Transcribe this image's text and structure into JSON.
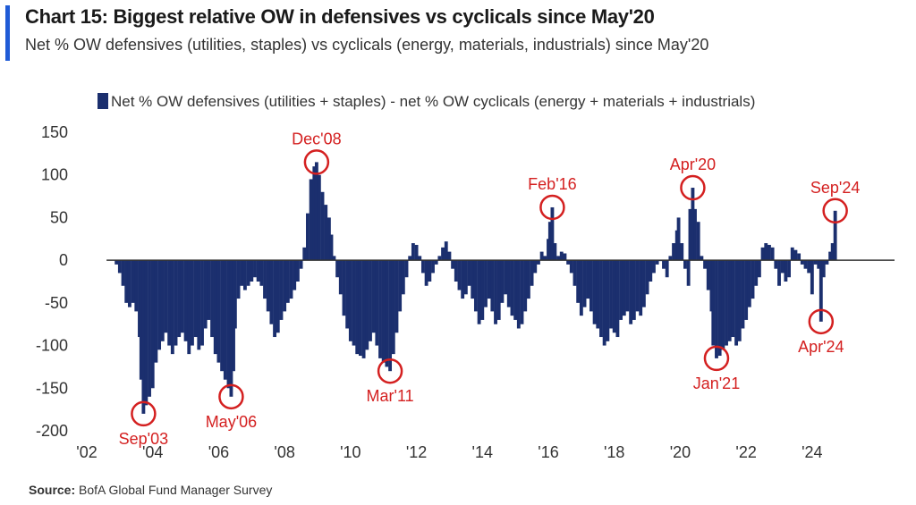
{
  "header": {
    "title": "Chart 15: Biggest relative OW in defensives vs cyclicals since May'20",
    "subtitle": "Net % OW defensives (utilities, staples) vs cyclicals (energy, materials, industrials) since May'20"
  },
  "source": {
    "label": "Source:",
    "text": " BofA Global Fund Manager Survey"
  },
  "colors": {
    "bar": "#1b2f6e",
    "annotation": "#d42020",
    "accent": "#1f5bd6",
    "axis": "#333333"
  },
  "chart_data": {
    "type": "bar",
    "legend": "Net % OW defensives (utilities + staples) - net % OW cyclicals (energy + materials + industrials)",
    "ylim": [
      -200,
      150
    ],
    "yticks": [
      150,
      100,
      50,
      0,
      -50,
      -100,
      -150,
      -200
    ],
    "xlim": [
      2002,
      2026.5
    ],
    "xticks": [
      {
        "value": 2002,
        "label": "'02"
      },
      {
        "value": 2004,
        "label": "'04"
      },
      {
        "value": 2006,
        "label": "'06"
      },
      {
        "value": 2008,
        "label": "'08"
      },
      {
        "value": 2010,
        "label": "'10"
      },
      {
        "value": 2012,
        "label": "'12"
      },
      {
        "value": 2014,
        "label": "'14"
      },
      {
        "value": 2016,
        "label": "'16"
      },
      {
        "value": 2018,
        "label": "'18"
      },
      {
        "value": 2020,
        "label": "'20"
      },
      {
        "value": 2022,
        "label": "'22"
      },
      {
        "value": 2024,
        "label": "'24"
      }
    ],
    "bar_width_years": 0.083,
    "series": [
      {
        "points": [
          [
            2002.9,
            -5
          ],
          [
            2003.0,
            -15
          ],
          [
            2003.1,
            -30
          ],
          [
            2003.2,
            -50
          ],
          [
            2003.3,
            -55
          ],
          [
            2003.4,
            -50
          ],
          [
            2003.5,
            -60
          ],
          [
            2003.6,
            -90
          ],
          [
            2003.65,
            -140
          ],
          [
            2003.72,
            -180
          ],
          [
            2003.8,
            -170
          ],
          [
            2003.9,
            -160
          ],
          [
            2004.0,
            -150
          ],
          [
            2004.1,
            -120
          ],
          [
            2004.2,
            -105
          ],
          [
            2004.3,
            -95
          ],
          [
            2004.4,
            -85
          ],
          [
            2004.5,
            -100
          ],
          [
            2004.6,
            -110
          ],
          [
            2004.7,
            -100
          ],
          [
            2004.8,
            -90
          ],
          [
            2004.9,
            -85
          ],
          [
            2005.0,
            -95
          ],
          [
            2005.1,
            -110
          ],
          [
            2005.2,
            -100
          ],
          [
            2005.3,
            -90
          ],
          [
            2005.4,
            -105
          ],
          [
            2005.5,
            -100
          ],
          [
            2005.6,
            -80
          ],
          [
            2005.7,
            -70
          ],
          [
            2005.8,
            -90
          ],
          [
            2005.9,
            -110
          ],
          [
            2006.0,
            -120
          ],
          [
            2006.1,
            -130
          ],
          [
            2006.2,
            -140
          ],
          [
            2006.3,
            -150
          ],
          [
            2006.38,
            -160
          ],
          [
            2006.45,
            -130
          ],
          [
            2006.5,
            -80
          ],
          [
            2006.6,
            -45
          ],
          [
            2006.7,
            -30
          ],
          [
            2006.8,
            -35
          ],
          [
            2006.9,
            -30
          ],
          [
            2007.0,
            -25
          ],
          [
            2007.1,
            -20
          ],
          [
            2007.2,
            -25
          ],
          [
            2007.3,
            -30
          ],
          [
            2007.4,
            -45
          ],
          [
            2007.5,
            -60
          ],
          [
            2007.6,
            -75
          ],
          [
            2007.7,
            -90
          ],
          [
            2007.8,
            -85
          ],
          [
            2007.9,
            -70
          ],
          [
            2008.0,
            -60
          ],
          [
            2008.1,
            -50
          ],
          [
            2008.2,
            -45
          ],
          [
            2008.3,
            -35
          ],
          [
            2008.4,
            -25
          ],
          [
            2008.5,
            -10
          ],
          [
            2008.6,
            15
          ],
          [
            2008.7,
            55
          ],
          [
            2008.8,
            95
          ],
          [
            2008.9,
            110
          ],
          [
            2008.97,
            115
          ],
          [
            2009.05,
            100
          ],
          [
            2009.15,
            80
          ],
          [
            2009.25,
            65
          ],
          [
            2009.35,
            50
          ],
          [
            2009.42,
            30
          ],
          [
            2009.5,
            5
          ],
          [
            2009.6,
            -20
          ],
          [
            2009.7,
            -40
          ],
          [
            2009.8,
            -65
          ],
          [
            2009.9,
            -80
          ],
          [
            2010.0,
            -95
          ],
          [
            2010.1,
            -100
          ],
          [
            2010.2,
            -110
          ],
          [
            2010.3,
            -112
          ],
          [
            2010.4,
            -115
          ],
          [
            2010.5,
            -105
          ],
          [
            2010.6,
            -95
          ],
          [
            2010.7,
            -85
          ],
          [
            2010.8,
            -100
          ],
          [
            2010.9,
            -115
          ],
          [
            2011.0,
            -120
          ],
          [
            2011.1,
            -125
          ],
          [
            2011.2,
            -130
          ],
          [
            2011.3,
            -110
          ],
          [
            2011.4,
            -85
          ],
          [
            2011.5,
            -60
          ],
          [
            2011.6,
            -40
          ],
          [
            2011.7,
            -20
          ],
          [
            2011.8,
            5
          ],
          [
            2011.9,
            20
          ],
          [
            2012.0,
            18
          ],
          [
            2012.1,
            5
          ],
          [
            2012.2,
            -15
          ],
          [
            2012.3,
            -30
          ],
          [
            2012.4,
            -25
          ],
          [
            2012.5,
            -15
          ],
          [
            2012.6,
            -5
          ],
          [
            2012.7,
            5
          ],
          [
            2012.8,
            15
          ],
          [
            2012.9,
            22
          ],
          [
            2013.0,
            10
          ],
          [
            2013.1,
            -10
          ],
          [
            2013.2,
            -25
          ],
          [
            2013.3,
            -35
          ],
          [
            2013.4,
            -45
          ],
          [
            2013.5,
            -40
          ],
          [
            2013.6,
            -30
          ],
          [
            2013.7,
            -45
          ],
          [
            2013.8,
            -60
          ],
          [
            2013.9,
            -75
          ],
          [
            2014.0,
            -70
          ],
          [
            2014.1,
            -55
          ],
          [
            2014.2,
            -45
          ],
          [
            2014.3,
            -60
          ],
          [
            2014.4,
            -75
          ],
          [
            2014.5,
            -70
          ],
          [
            2014.6,
            -50
          ],
          [
            2014.7,
            -40
          ],
          [
            2014.8,
            -55
          ],
          [
            2014.9,
            -65
          ],
          [
            2015.0,
            -70
          ],
          [
            2015.1,
            -80
          ],
          [
            2015.2,
            -75
          ],
          [
            2015.3,
            -60
          ],
          [
            2015.4,
            -45
          ],
          [
            2015.5,
            -30
          ],
          [
            2015.6,
            -15
          ],
          [
            2015.7,
            -5
          ],
          [
            2015.8,
            10
          ],
          [
            2015.9,
            5
          ],
          [
            2016.0,
            25
          ],
          [
            2016.05,
            45
          ],
          [
            2016.12,
            62
          ],
          [
            2016.2,
            20
          ],
          [
            2016.3,
            5
          ],
          [
            2016.4,
            10
          ],
          [
            2016.5,
            8
          ],
          [
            2016.6,
            -5
          ],
          [
            2016.7,
            -15
          ],
          [
            2016.8,
            -30
          ],
          [
            2016.9,
            -50
          ],
          [
            2017.0,
            -65
          ],
          [
            2017.1,
            -55
          ],
          [
            2017.2,
            -45
          ],
          [
            2017.3,
            -60
          ],
          [
            2017.4,
            -75
          ],
          [
            2017.5,
            -80
          ],
          [
            2017.6,
            -90
          ],
          [
            2017.7,
            -100
          ],
          [
            2017.8,
            -95
          ],
          [
            2017.9,
            -80
          ],
          [
            2018.0,
            -85
          ],
          [
            2018.1,
            -90
          ],
          [
            2018.2,
            -70
          ],
          [
            2018.3,
            -65
          ],
          [
            2018.4,
            -60
          ],
          [
            2018.5,
            -75
          ],
          [
            2018.6,
            -70
          ],
          [
            2018.7,
            -60
          ],
          [
            2018.8,
            -65
          ],
          [
            2018.9,
            -55
          ],
          [
            2019.0,
            -40
          ],
          [
            2019.1,
            -25
          ],
          [
            2019.2,
            -15
          ],
          [
            2019.3,
            -5
          ],
          [
            2019.4,
            0
          ],
          [
            2019.5,
            -10
          ],
          [
            2019.6,
            -20
          ],
          [
            2019.7,
            5
          ],
          [
            2019.8,
            20
          ],
          [
            2019.9,
            35
          ],
          [
            2019.95,
            50
          ],
          [
            2020.05,
            20
          ],
          [
            2020.15,
            -10
          ],
          [
            2020.25,
            -30
          ],
          [
            2020.3,
            60
          ],
          [
            2020.38,
            85
          ],
          [
            2020.45,
            60
          ],
          [
            2020.55,
            45
          ],
          [
            2020.65,
            5
          ],
          [
            2020.75,
            -10
          ],
          [
            2020.85,
            -35
          ],
          [
            2020.95,
            -60
          ],
          [
            2021.0,
            -100
          ],
          [
            2021.1,
            -115
          ],
          [
            2021.2,
            -112
          ],
          [
            2021.3,
            -105
          ],
          [
            2021.4,
            -100
          ],
          [
            2021.5,
            -95
          ],
          [
            2021.6,
            -90
          ],
          [
            2021.7,
            -100
          ],
          [
            2021.8,
            -95
          ],
          [
            2021.9,
            -80
          ],
          [
            2022.0,
            -70
          ],
          [
            2022.1,
            -55
          ],
          [
            2022.2,
            -45
          ],
          [
            2022.3,
            -30
          ],
          [
            2022.4,
            -20
          ],
          [
            2022.5,
            15
          ],
          [
            2022.6,
            20
          ],
          [
            2022.7,
            18
          ],
          [
            2022.8,
            15
          ],
          [
            2022.9,
            -10
          ],
          [
            2023.0,
            -30
          ],
          [
            2023.1,
            -15
          ],
          [
            2023.2,
            -25
          ],
          [
            2023.3,
            -20
          ],
          [
            2023.4,
            15
          ],
          [
            2023.5,
            12
          ],
          [
            2023.6,
            8
          ],
          [
            2023.7,
            -5
          ],
          [
            2023.8,
            -10
          ],
          [
            2023.9,
            -15
          ],
          [
            2024.0,
            -40
          ],
          [
            2024.1,
            -5
          ],
          [
            2024.2,
            -10
          ],
          [
            2024.27,
            -72
          ],
          [
            2024.35,
            -20
          ],
          [
            2024.45,
            -5
          ],
          [
            2024.55,
            10
          ],
          [
            2024.62,
            20
          ],
          [
            2024.7,
            58
          ]
        ]
      }
    ],
    "annotations": [
      {
        "label": "Dec'08",
        "x": 2008.97,
        "y": 115,
        "pos": "above"
      },
      {
        "label": "Sep'03",
        "x": 2003.72,
        "y": -180,
        "pos": "below"
      },
      {
        "label": "May'06",
        "x": 2006.38,
        "y": -160,
        "pos": "below"
      },
      {
        "label": "Mar'11",
        "x": 2011.2,
        "y": -130,
        "pos": "below"
      },
      {
        "label": "Feb'16",
        "x": 2016.12,
        "y": 62,
        "pos": "above"
      },
      {
        "label": "Apr'20",
        "x": 2020.38,
        "y": 85,
        "pos": "above"
      },
      {
        "label": "Jan'21",
        "x": 2021.1,
        "y": -115,
        "pos": "below"
      },
      {
        "label": "Sep'24",
        "x": 2024.7,
        "y": 58,
        "pos": "above"
      },
      {
        "label": "Apr'24",
        "x": 2024.27,
        "y": -72,
        "pos": "below"
      }
    ]
  }
}
